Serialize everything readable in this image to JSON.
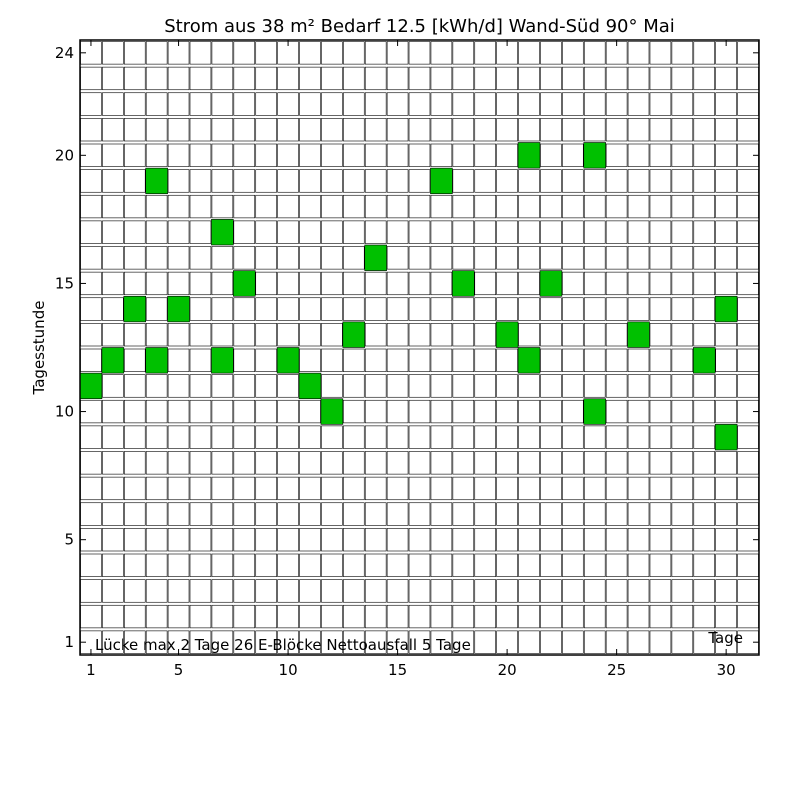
{
  "chart_data": {
    "type": "heatmap",
    "title": "Strom aus 38 m² Bedarf 12.5 [kWh/d] Wand-Süd 90°  Mai",
    "xlabel": "Tage",
    "ylabel": "Tagesstunde",
    "xlim": [
      0.5,
      31.5
    ],
    "ylim": [
      0.5,
      24.5
    ],
    "x_ticks": [
      1,
      5,
      10,
      15,
      20,
      25,
      30
    ],
    "y_ticks": [
      1,
      5,
      10,
      15,
      20,
      24
    ],
    "grid": true,
    "cell_color": "#00c000",
    "annotation": "Lücke max 2 Tage  26 E-Blöcke  Nettoausfall 5 Tage",
    "blocks": [
      {
        "day": 1,
        "hour": 11
      },
      {
        "day": 2,
        "hour": 12
      },
      {
        "day": 3,
        "hour": 14
      },
      {
        "day": 4,
        "hour": 12
      },
      {
        "day": 4,
        "hour": 19
      },
      {
        "day": 5,
        "hour": 14
      },
      {
        "day": 7,
        "hour": 12
      },
      {
        "day": 7,
        "hour": 17
      },
      {
        "day": 8,
        "hour": 15
      },
      {
        "day": 10,
        "hour": 12
      },
      {
        "day": 11,
        "hour": 11
      },
      {
        "day": 12,
        "hour": 10
      },
      {
        "day": 13,
        "hour": 13
      },
      {
        "day": 14,
        "hour": 16
      },
      {
        "day": 17,
        "hour": 19
      },
      {
        "day": 18,
        "hour": 15
      },
      {
        "day": 20,
        "hour": 13
      },
      {
        "day": 21,
        "hour": 12
      },
      {
        "day": 21,
        "hour": 20
      },
      {
        "day": 22,
        "hour": 15
      },
      {
        "day": 24,
        "hour": 10
      },
      {
        "day": 24,
        "hour": 20
      },
      {
        "day": 26,
        "hour": 13
      },
      {
        "day": 29,
        "hour": 12
      },
      {
        "day": 30,
        "hour": 9
      },
      {
        "day": 30,
        "hour": 14
      }
    ]
  }
}
